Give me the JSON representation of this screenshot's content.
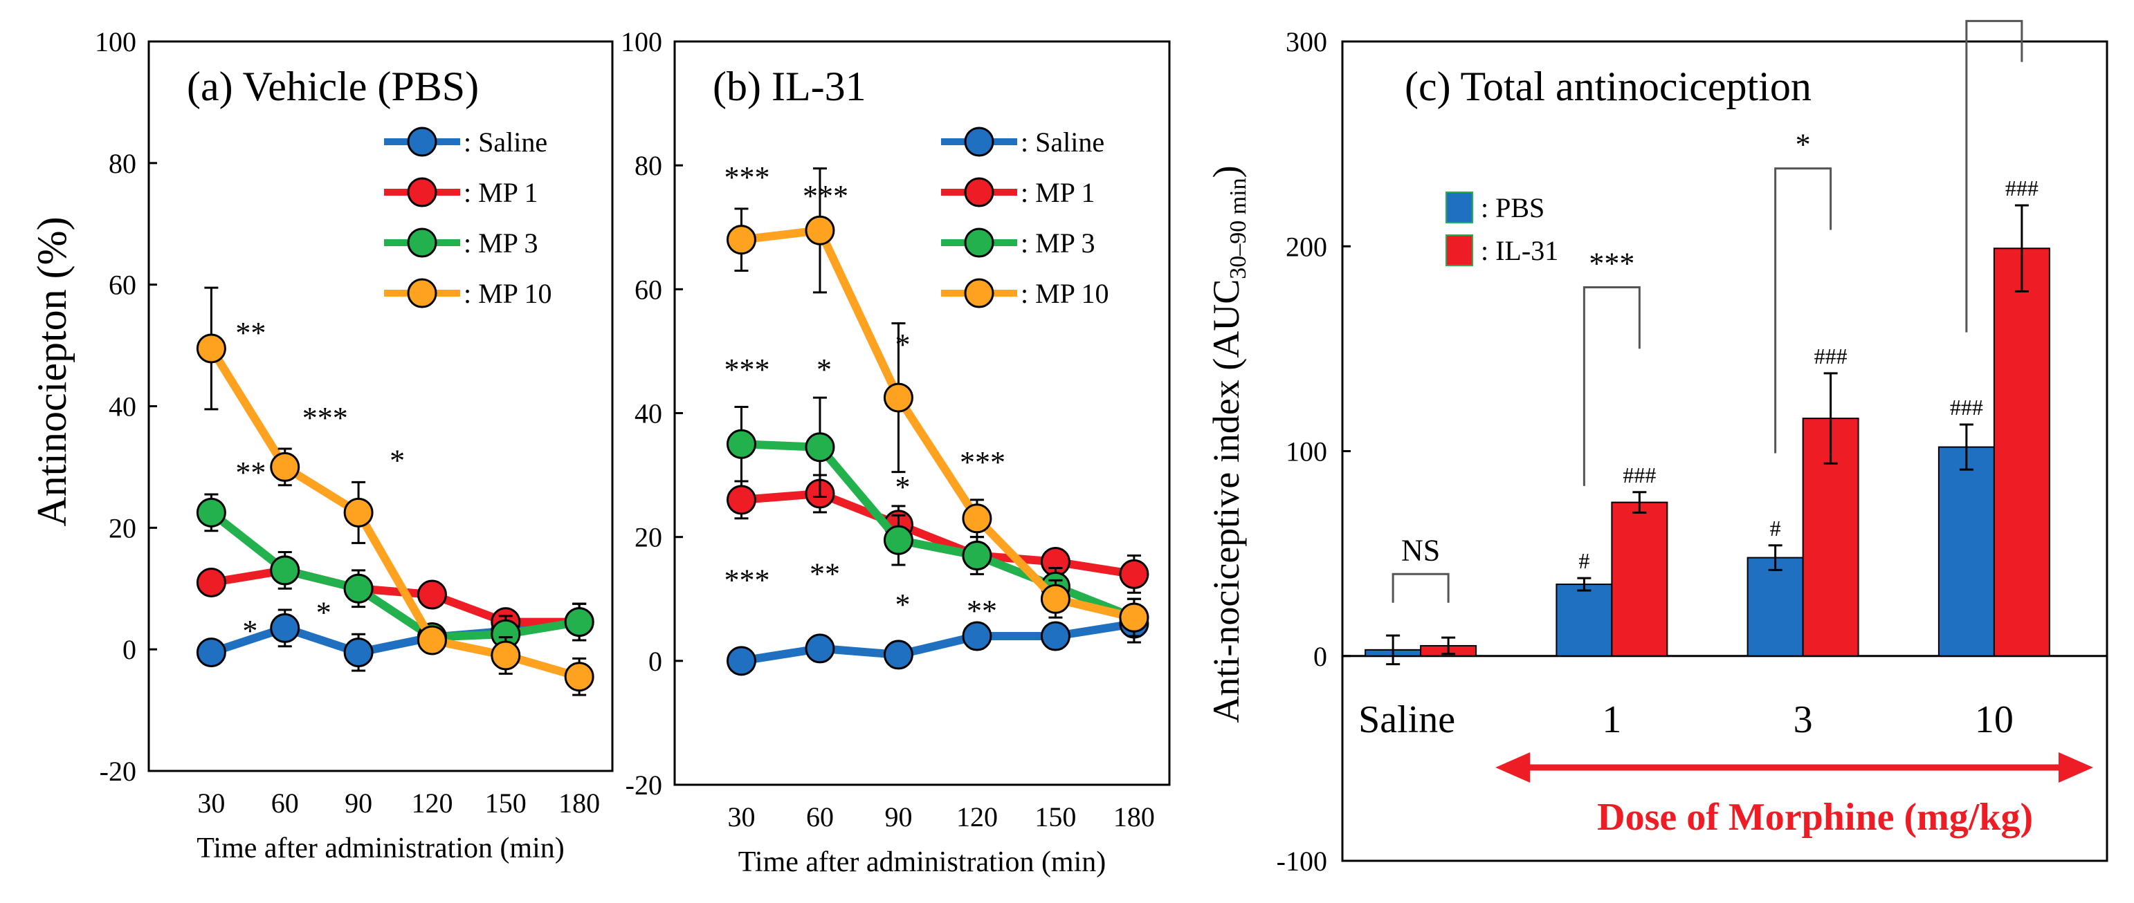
{
  "chart_data": [
    {
      "type": "line",
      "panel": "a",
      "title": "(a) Vehicle (PBS)",
      "xlabel": "Time after administration (min)",
      "ylabel": "Antinociception (%)",
      "ylabel_display": "Antinociepton (%)",
      "x": [
        30,
        60,
        90,
        120,
        150,
        180
      ],
      "ylim": [
        -20,
        100
      ],
      "yticks": [
        -20,
        0,
        20,
        40,
        60,
        80,
        100
      ],
      "grid": false,
      "legend_position": "top-right",
      "series": [
        {
          "name": ": Saline",
          "color": "#1f70c1",
          "values": [
            -0.5,
            3.5,
            -0.5,
            2,
            3,
            4.5
          ],
          "err": [
            2,
            3,
            3,
            2,
            2,
            3
          ]
        },
        {
          "name": ": MP 1",
          "color": "#ee1c24",
          "values": [
            11,
            13,
            10,
            9,
            4.5,
            4.5
          ],
          "err": [
            2,
            2,
            2,
            2,
            2,
            3
          ]
        },
        {
          "name": ": MP 3",
          "color": "#22b14c",
          "values": [
            22.5,
            13,
            10,
            2,
            2.5,
            4.5
          ],
          "err": [
            3,
            3,
            3,
            2,
            3,
            3
          ]
        },
        {
          "name": ": MP 10",
          "color": "#ffa21f",
          "values": [
            49.5,
            30,
            22.5,
            1.5,
            -1,
            -4.5
          ],
          "err": [
            10,
            3,
            5,
            2,
            3,
            3
          ]
        }
      ],
      "annotations": [
        {
          "text": "**",
          "x": 30,
          "y": 52
        },
        {
          "text": "***",
          "x": 60,
          "y": 38
        },
        {
          "text": "*",
          "x": 90,
          "y": 31
        },
        {
          "text": "**",
          "x": 30,
          "y": 29
        },
        {
          "text": "*",
          "x": 30,
          "y": 3
        },
        {
          "text": "*",
          "x": 60,
          "y": 6
        }
      ]
    },
    {
      "type": "line",
      "panel": "b",
      "title": "(b) IL-31",
      "xlabel": "Time after administration (min)",
      "ylabel": "",
      "x": [
        30,
        60,
        90,
        120,
        150,
        180
      ],
      "ylim": [
        -20,
        100
      ],
      "yticks": [
        -20,
        0,
        20,
        40,
        60,
        80,
        100
      ],
      "grid": false,
      "legend_position": "top-right",
      "series": [
        {
          "name": ": Saline",
          "color": "#1f70c1",
          "values": [
            0,
            2,
            1,
            4,
            4,
            6
          ],
          "err": [
            1,
            2,
            2,
            2,
            2,
            3
          ]
        },
        {
          "name": ": MP 1",
          "color": "#ee1c24",
          "values": [
            26,
            27,
            22,
            17,
            16,
            14
          ],
          "err": [
            3,
            3,
            3,
            2,
            2,
            3
          ]
        },
        {
          "name": ": MP 3",
          "color": "#22b14c",
          "values": [
            35,
            34.5,
            19.5,
            17,
            12,
            7
          ],
          "err": [
            6,
            8,
            4,
            3,
            3,
            3
          ]
        },
        {
          "name": ": MP 10",
          "color": "#ffa21f",
          "values": [
            68,
            69.5,
            42.5,
            23,
            10,
            7
          ],
          "err": [
            5,
            10,
            12,
            3,
            3,
            3
          ]
        }
      ],
      "annotations": [
        {
          "text": "***",
          "x": 30,
          "y": 78
        },
        {
          "text": "***",
          "x": 60,
          "y": 75
        },
        {
          "text": "***",
          "x": 30,
          "y": 47
        },
        {
          "text": "*",
          "x": 60,
          "y": 47
        },
        {
          "text": "*",
          "x": 90,
          "y": 51
        },
        {
          "text": "*",
          "x": 90,
          "y": 28
        },
        {
          "text": "***",
          "x": 120,
          "y": 32
        },
        {
          "text": "***",
          "x": 30,
          "y": 13
        },
        {
          "text": "**",
          "x": 60,
          "y": 14
        },
        {
          "text": "*",
          "x": 90,
          "y": 9
        },
        {
          "text": "**",
          "x": 120,
          "y": 8
        }
      ]
    },
    {
      "type": "bar",
      "panel": "c",
      "title": "(c) Total antinociception",
      "xlabel": "Dose of Morphine (mg/kg)",
      "ylabel": "Anti-nociceptive index (AUC30–90 min)",
      "ylabel_main": "Anti-nociceptive index (AUC",
      "ylabel_sub": "30–90 min",
      "ylabel_close": ")",
      "categories": [
        "Saline",
        "1",
        "3",
        "10"
      ],
      "ylim": [
        -100,
        300
      ],
      "yticks": [
        -100,
        0,
        100,
        200,
        300
      ],
      "grid": false,
      "legend_position": "top-left",
      "series": [
        {
          "name": ": PBS",
          "color": "#1f70c1",
          "values": [
            3,
            35,
            48,
            102
          ],
          "err": [
            7,
            3,
            6,
            11
          ],
          "marks": [
            "",
            "#",
            "#",
            "###"
          ]
        },
        {
          "name": ": IL-31",
          "color": "#ee1c24",
          "values": [
            5,
            75,
            116,
            199
          ],
          "err": [
            4,
            5,
            22,
            21
          ],
          "marks": [
            "",
            "###",
            "###",
            "###"
          ]
        }
      ],
      "comparisons": [
        {
          "category": "Saline",
          "text": "NS"
        },
        {
          "category": "1",
          "text": "***"
        },
        {
          "category": "3",
          "text": "*"
        },
        {
          "category": "10",
          "text": "**"
        }
      ],
      "dose_arrow_color": "#ee1c24"
    }
  ]
}
